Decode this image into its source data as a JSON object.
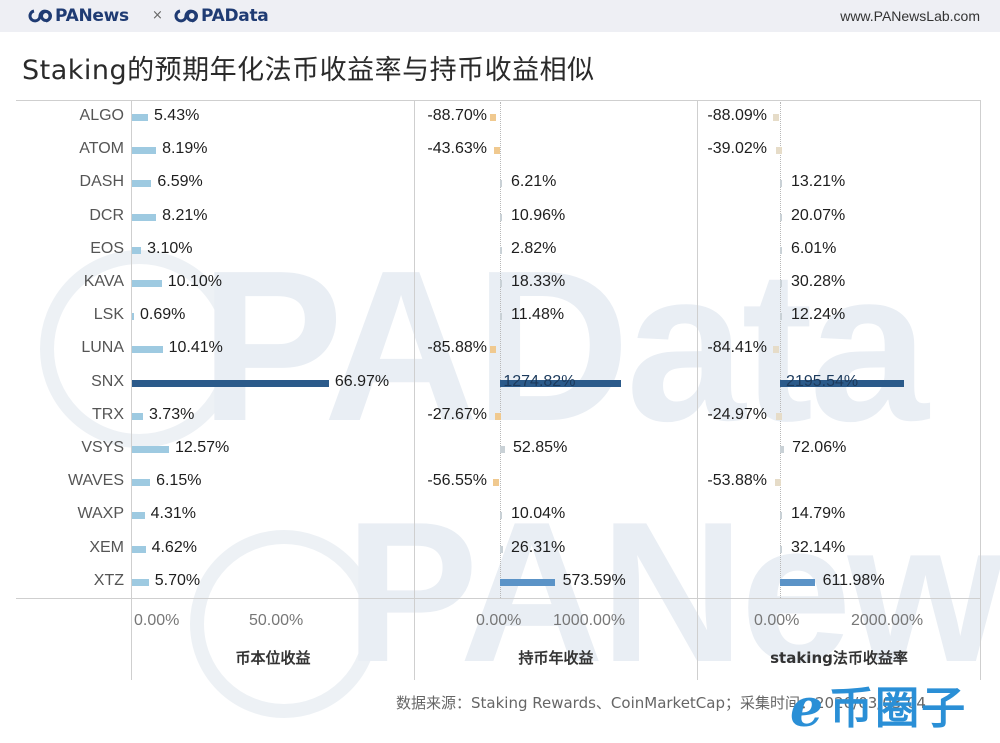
{
  "header": {
    "brand_left": "PANews",
    "separator": "×",
    "brand_right": "PAData",
    "website": "www.PANewsLab.com"
  },
  "title": "Staking的预期年化法币收益率与持币收益相似",
  "watermarks": {
    "upper": "PAData",
    "lower": "PANews"
  },
  "footer": {
    "source": "数据来源：Staking Rewards、CoinMarketCap；采集时间：2020/03/03-04",
    "corner_logo_text": "币圈子"
  },
  "colors": {
    "bar_light": "#9ecae1",
    "bar_dark": "#2b5a8a",
    "bar_mid": "#5b93c7",
    "bar_negative": "#f0c98f",
    "bar_small_pos": "#c9d1d6",
    "grid": "#cfcfcf"
  },
  "chart_data": {
    "type": "bar",
    "orientation": "horizontal",
    "title": "Staking的预期年化法币收益率与持币收益相似",
    "categories": [
      "ALGO",
      "ATOM",
      "DASH",
      "DCR",
      "EOS",
      "KAVA",
      "LSK",
      "LUNA",
      "SNX",
      "TRX",
      "VSYS",
      "WAVES",
      "WAXP",
      "XEM",
      "XTZ"
    ],
    "series": [
      {
        "name": "币本位收益",
        "values": [
          5.43,
          8.19,
          6.59,
          8.21,
          3.1,
          10.1,
          0.69,
          10.41,
          66.97,
          3.73,
          12.57,
          6.15,
          4.31,
          4.62,
          5.7
        ],
        "labels": [
          "5.43%",
          "8.19%",
          "6.59%",
          "8.21%",
          "3.10%",
          "10.10%",
          "0.69%",
          "10.41%",
          "66.97%",
          "3.73%",
          "12.57%",
          "6.15%",
          "4.31%",
          "4.62%",
          "5.70%"
        ],
        "xticks": [
          "0.00%",
          "50.00%"
        ]
      },
      {
        "name": "持币年收益",
        "values": [
          -88.7,
          -43.63,
          6.21,
          10.96,
          2.82,
          18.33,
          11.48,
          -85.88,
          1274.82,
          -27.67,
          52.85,
          -56.55,
          10.04,
          26.31,
          573.59
        ],
        "labels": [
          "-88.70%",
          "-43.63%",
          "6.21%",
          "10.96%",
          "2.82%",
          "18.33%",
          "11.48%",
          "-85.88%",
          "1274.82%",
          "-27.67%",
          "52.85%",
          "-56.55%",
          "10.04%",
          "26.31%",
          "573.59%"
        ],
        "xticks": [
          "0.00%",
          "1000.00%"
        ]
      },
      {
        "name": "staking法币收益率",
        "values": [
          -88.09,
          -39.02,
          13.21,
          20.07,
          6.01,
          30.28,
          12.24,
          -84.41,
          2195.54,
          -24.97,
          72.06,
          -53.88,
          14.79,
          32.14,
          611.98
        ],
        "labels": [
          "-88.09%",
          "-39.02%",
          "13.21%",
          "20.07%",
          "6.01%",
          "30.28%",
          "12.24%",
          "-84.41%",
          "2195.54%",
          "-24.97%",
          "72.06%",
          "-53.88%",
          "14.79%",
          "32.14%",
          "611.98%"
        ],
        "xticks": [
          "0.00%",
          "2000.00%"
        ]
      }
    ],
    "xlabel": [
      "币本位收益",
      "持币年收益",
      "staking法币收益率"
    ],
    "ylabel": "",
    "grid": false,
    "legend": "none",
    "source": "数据来源：Staking Rewards、CoinMarketCap；采集时间：2020/03/03-04"
  }
}
